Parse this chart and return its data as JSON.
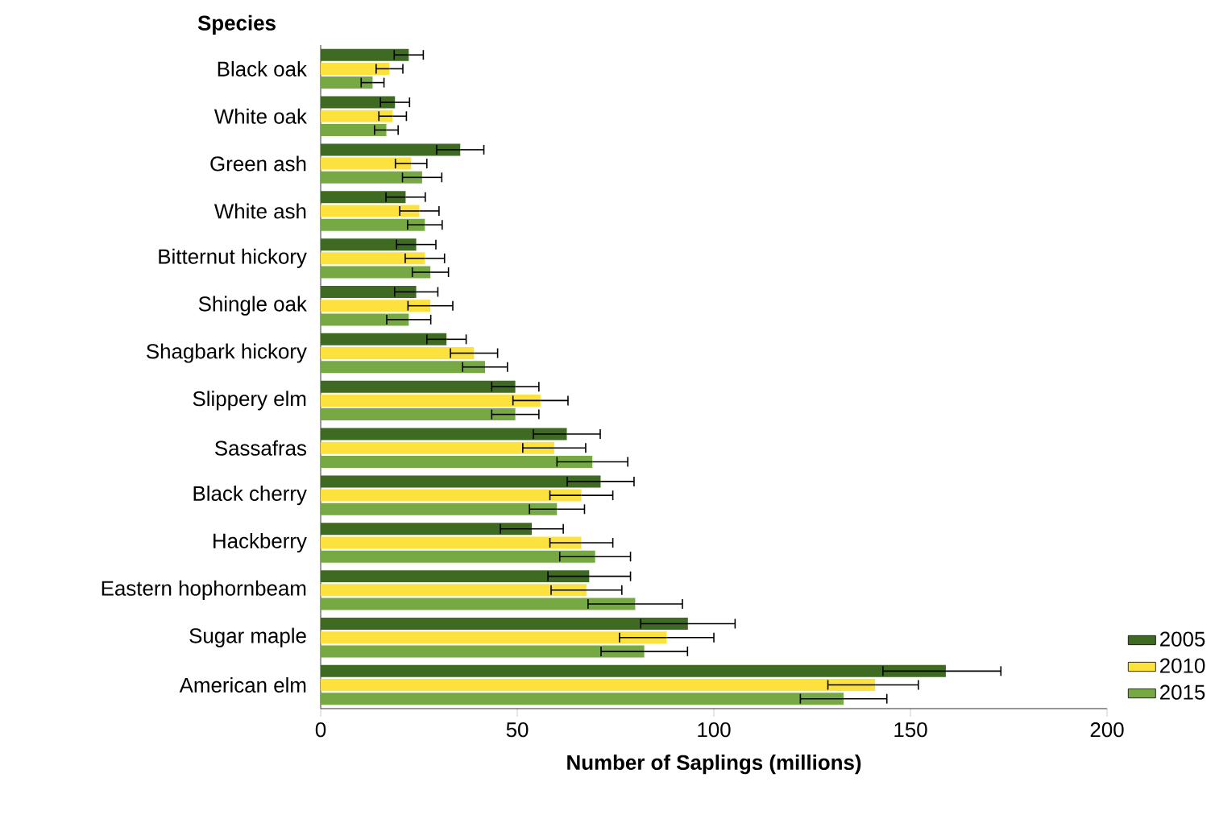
{
  "chart_data": {
    "type": "bar",
    "orientation": "horizontal",
    "xlabel": "Number of Saplings (millions)",
    "ylabel": "Species",
    "categories": [
      "Black oak",
      "White oak",
      "Green ash",
      "White ash",
      "Bitternut hickory",
      "Shingle oak",
      "Shagbark hickory",
      "Slippery elm",
      "Sassafras",
      "Black cherry",
      "Hackberry",
      "Eastern hophornbeam",
      "Sugar maple",
      "American elm"
    ],
    "series": [
      {
        "name": "2005",
        "color": "#3f6a22",
        "values": [
          22.4,
          18.9,
          35.5,
          21.6,
          24.3,
          24.3,
          32,
          49.5,
          62.6,
          71.2,
          53.7,
          68.3,
          93.4,
          159
        ],
        "errors": [
          3.7,
          3.7,
          6,
          5,
          5,
          5.5,
          5,
          6,
          8.5,
          8.5,
          8,
          10.5,
          12,
          [
            143,
            173
          ]
        ]
      },
      {
        "name": "2010",
        "color": "#fde13d",
        "values": [
          17.5,
          18.3,
          23,
          25.1,
          26.5,
          27.9,
          39,
          55.9,
          59.4,
          66.3,
          66.3,
          67.6,
          88,
          141
        ],
        "errors": [
          3.4,
          3.5,
          4,
          5,
          5,
          5.7,
          6,
          7,
          8,
          8,
          8,
          9,
          12,
          [
            129,
            152
          ]
        ]
      },
      {
        "name": "2015",
        "color": "#76a843",
        "values": [
          13.2,
          16.7,
          25.8,
          26.5,
          27.9,
          22.4,
          41.8,
          49.5,
          69.1,
          60.1,
          69.8,
          80,
          82.3,
          133
        ],
        "errors": [
          2.9,
          3,
          5,
          4.4,
          4.6,
          5.6,
          5.7,
          6,
          9,
          7,
          9,
          12,
          11,
          [
            122,
            144
          ]
        ]
      }
    ],
    "xlim": [
      0,
      200
    ],
    "xticks": [
      0,
      50,
      100,
      150,
      200
    ],
    "grid": false,
    "legend": "bottom right"
  }
}
